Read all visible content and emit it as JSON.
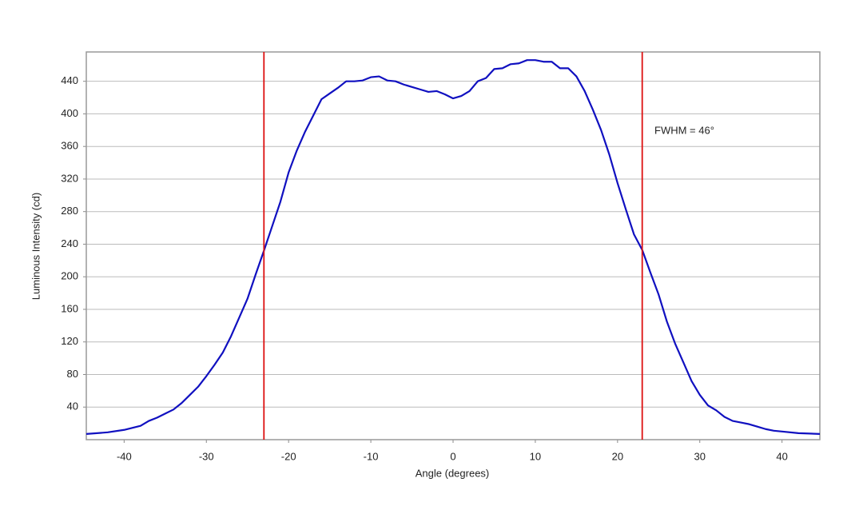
{
  "chart_data": {
    "type": "line",
    "xlabel": "Angle (degrees)",
    "ylabel": "Luminous Intensity (cd)",
    "annotation": "FWHM = 46°",
    "x": [
      -44.6,
      -42,
      -40,
      -38,
      -37,
      -36,
      -35,
      -34,
      -33,
      -32,
      -31,
      -30,
      -29,
      -28,
      -27,
      -26,
      -25,
      -24,
      -23,
      -22,
      -21,
      -20,
      -19,
      -18,
      -17,
      -16,
      -15,
      -14,
      -13,
      -12,
      -11,
      -10,
      -9,
      -8,
      -7,
      -6,
      -5,
      -4,
      -3,
      -2,
      -1,
      0,
      1,
      2,
      3,
      4,
      5,
      6,
      7,
      8,
      9,
      10,
      11,
      12,
      13,
      14,
      15,
      16,
      17,
      18,
      19,
      20,
      21,
      22,
      23,
      24,
      25,
      26,
      27,
      28,
      29,
      30,
      31,
      32,
      33,
      34,
      35,
      36,
      37,
      38,
      39,
      40,
      42,
      44.6
    ],
    "series": [
      {
        "name": "Luminous Intensity",
        "color": "#1010c0",
        "values": [
          7,
          9,
          12,
          17,
          23,
          27,
          32,
          37,
          45,
          55,
          65,
          78,
          92,
          107,
          127,
          150,
          173,
          203,
          232,
          262,
          292,
          328,
          355,
          378,
          398,
          418,
          425,
          432,
          440,
          440,
          441,
          445,
          446,
          441,
          440,
          436,
          433,
          430,
          427,
          428,
          424,
          419,
          422,
          428,
          440,
          444,
          455,
          456,
          461,
          462,
          466,
          466,
          464,
          464,
          456,
          456,
          446,
          428,
          405,
          380,
          350,
          315,
          283,
          252,
          233,
          205,
          178,
          145,
          118,
          95,
          72,
          55,
          42,
          36,
          28,
          23,
          21,
          19,
          16,
          13,
          11,
          10,
          8,
          7
        ]
      }
    ],
    "vlines": [
      -23,
      23
    ],
    "vline_color": "#dd1111",
    "xlim": [
      -44.6,
      44.6
    ],
    "ylim": [
      0,
      476
    ],
    "xticks": [
      -40,
      -30,
      -20,
      -10,
      0,
      10,
      20,
      30,
      40
    ],
    "yticks": [
      40,
      80,
      120,
      160,
      200,
      240,
      280,
      320,
      360,
      400,
      440
    ],
    "grid": true
  }
}
